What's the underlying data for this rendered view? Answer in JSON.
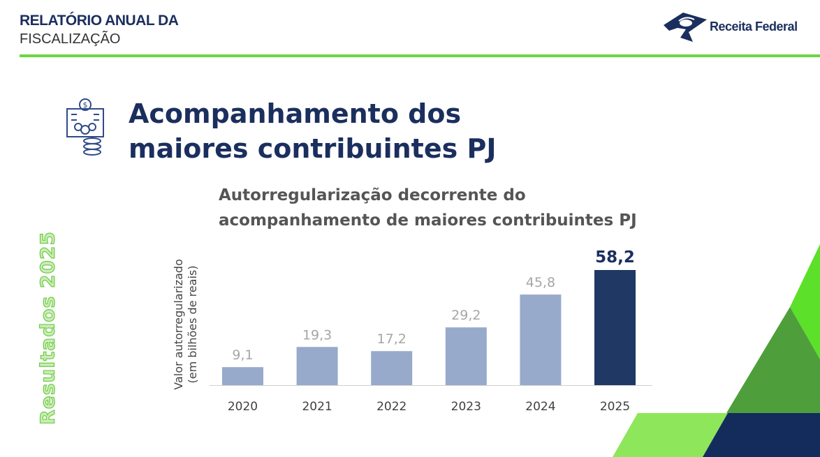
{
  "header": {
    "title_line1": "RELATÓRIO ANUAL DA",
    "title_line2": "FISCALIZAÇÃO",
    "logo_text": "Receita Federal"
  },
  "page": {
    "title_line1": "Acompanhamento dos",
    "title_line2": "maiores contribuintes PJ",
    "side_label": "Resultados 2025",
    "topic_icon": "building-people-coins-icon"
  },
  "colors": {
    "navy": "#1f3864",
    "bar_light": "#98aacb",
    "accent_green": "#6bd63f"
  },
  "chart_data": {
    "type": "bar",
    "title_line1": "Autorregularização decorrente do",
    "title_line2": "acompanhamento de maiores contribuintes PJ",
    "ylabel_line1": "Valor autorregularizado",
    "ylabel_line2": "(em bilhões de reais)",
    "categories": [
      "2020",
      "2021",
      "2022",
      "2023",
      "2024",
      "2025"
    ],
    "values": [
      9.1,
      19.3,
      17.2,
      29.2,
      45.8,
      58.2
    ],
    "data_labels": [
      "9,1",
      "19,3",
      "17,2",
      "29,2",
      "45,8",
      "58,2"
    ],
    "highlight": "2025",
    "ylim": [
      0,
      58.2
    ],
    "grid": false
  }
}
